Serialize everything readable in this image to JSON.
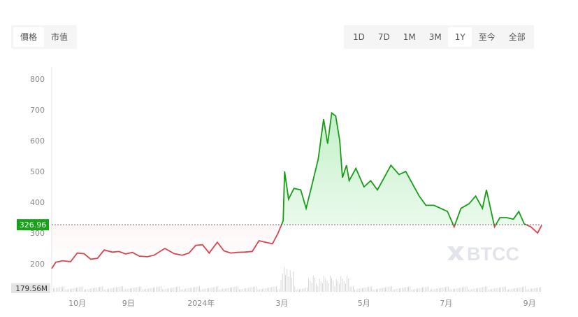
{
  "tabs": {
    "left": [
      {
        "label": "價格",
        "active": true
      },
      {
        "label": "市值",
        "active": false
      }
    ],
    "ranges": [
      {
        "label": "1D",
        "active": false
      },
      {
        "label": "7D",
        "active": false
      },
      {
        "label": "1M",
        "active": false
      },
      {
        "label": "3M",
        "active": false
      },
      {
        "label": "1Y",
        "active": true
      },
      {
        "label": "至今",
        "active": false
      },
      {
        "label": "全部",
        "active": false
      }
    ]
  },
  "watermark": "BTCC",
  "chart_data": {
    "type": "area",
    "ylim": [
      150,
      820
    ],
    "yticks": [
      200,
      300,
      400,
      500,
      600,
      700,
      800
    ],
    "xlim": [
      "2023-09-12",
      "2024-09-10"
    ],
    "xticks": [
      {
        "date": "2023-10-01",
        "label": "10月"
      },
      {
        "date": "2023-11-08",
        "label": "9日"
      },
      {
        "date": "2024-01-01",
        "label": "2024年"
      },
      {
        "date": "2024-03-01",
        "label": "3月"
      },
      {
        "date": "2024-05-01",
        "label": "5月"
      },
      {
        "date": "2024-07-01",
        "label": "7月"
      },
      {
        "date": "2024-09-01",
        "label": "9月"
      }
    ],
    "reference_value": 326.96,
    "reference_label": "326.96",
    "volume_label": "179.56M",
    "colors": {
      "above": "#1a9c1a",
      "below": "#d9454f",
      "label_bg": "#17a317"
    },
    "grid": false,
    "series": [
      {
        "points": [
          [
            "2023-09-12",
            185
          ],
          [
            "2023-09-15",
            205
          ],
          [
            "2023-09-20",
            210
          ],
          [
            "2023-09-26",
            207
          ],
          [
            "2023-10-01",
            235
          ],
          [
            "2023-10-06",
            233
          ],
          [
            "2023-10-11",
            215
          ],
          [
            "2023-10-16",
            218
          ],
          [
            "2023-10-21",
            245
          ],
          [
            "2023-10-27",
            238
          ],
          [
            "2023-11-01",
            240
          ],
          [
            "2023-11-06",
            232
          ],
          [
            "2023-11-11",
            237
          ],
          [
            "2023-11-16",
            225
          ],
          [
            "2023-11-22",
            223
          ],
          [
            "2023-11-27",
            228
          ],
          [
            "2023-12-05",
            250
          ],
          [
            "2023-12-12",
            233
          ],
          [
            "2023-12-18",
            228
          ],
          [
            "2023-12-23",
            235
          ],
          [
            "2023-12-28",
            260
          ],
          [
            "2024-01-02",
            262
          ],
          [
            "2024-01-07",
            235
          ],
          [
            "2024-01-13",
            270
          ],
          [
            "2024-01-18",
            242
          ],
          [
            "2024-01-23",
            235
          ],
          [
            "2024-01-28",
            237
          ],
          [
            "2024-02-02",
            238
          ],
          [
            "2024-02-08",
            240
          ],
          [
            "2024-02-13",
            275
          ],
          [
            "2024-02-18",
            270
          ],
          [
            "2024-02-23",
            265
          ],
          [
            "2024-02-27",
            298
          ],
          [
            "2024-03-02",
            340
          ],
          [
            "2024-03-03",
            500
          ],
          [
            "2024-03-06",
            410
          ],
          [
            "2024-03-10",
            445
          ],
          [
            "2024-03-15",
            440
          ],
          [
            "2024-03-19",
            380
          ],
          [
            "2024-03-23",
            450
          ],
          [
            "2024-03-28",
            540
          ],
          [
            "2024-04-01",
            670
          ],
          [
            "2024-04-04",
            590
          ],
          [
            "2024-04-07",
            690
          ],
          [
            "2024-04-10",
            680
          ],
          [
            "2024-04-13",
            600
          ],
          [
            "2024-04-15",
            480
          ],
          [
            "2024-04-18",
            520
          ],
          [
            "2024-04-20",
            470
          ],
          [
            "2024-04-25",
            510
          ],
          [
            "2024-05-01",
            450
          ],
          [
            "2024-05-06",
            470
          ],
          [
            "2024-05-11",
            440
          ],
          [
            "2024-05-16",
            480
          ],
          [
            "2024-05-21",
            520
          ],
          [
            "2024-05-27",
            490
          ],
          [
            "2024-06-01",
            500
          ],
          [
            "2024-06-06",
            460
          ],
          [
            "2024-06-11",
            420
          ],
          [
            "2024-06-16",
            390
          ],
          [
            "2024-06-22",
            390
          ],
          [
            "2024-06-27",
            380
          ],
          [
            "2024-07-02",
            370
          ],
          [
            "2024-07-07",
            320
          ],
          [
            "2024-07-12",
            380
          ],
          [
            "2024-07-18",
            395
          ],
          [
            "2024-07-23",
            420
          ],
          [
            "2024-07-28",
            380
          ],
          [
            "2024-07-31",
            440
          ],
          [
            "2024-08-02",
            400
          ],
          [
            "2024-08-06",
            320
          ],
          [
            "2024-08-10",
            350
          ],
          [
            "2024-08-15",
            350
          ],
          [
            "2024-08-20",
            345
          ],
          [
            "2024-08-24",
            370
          ],
          [
            "2024-08-28",
            330
          ],
          [
            "2024-09-02",
            320
          ],
          [
            "2024-09-07",
            300
          ],
          [
            "2024-09-10",
            325
          ]
        ]
      }
    ]
  }
}
